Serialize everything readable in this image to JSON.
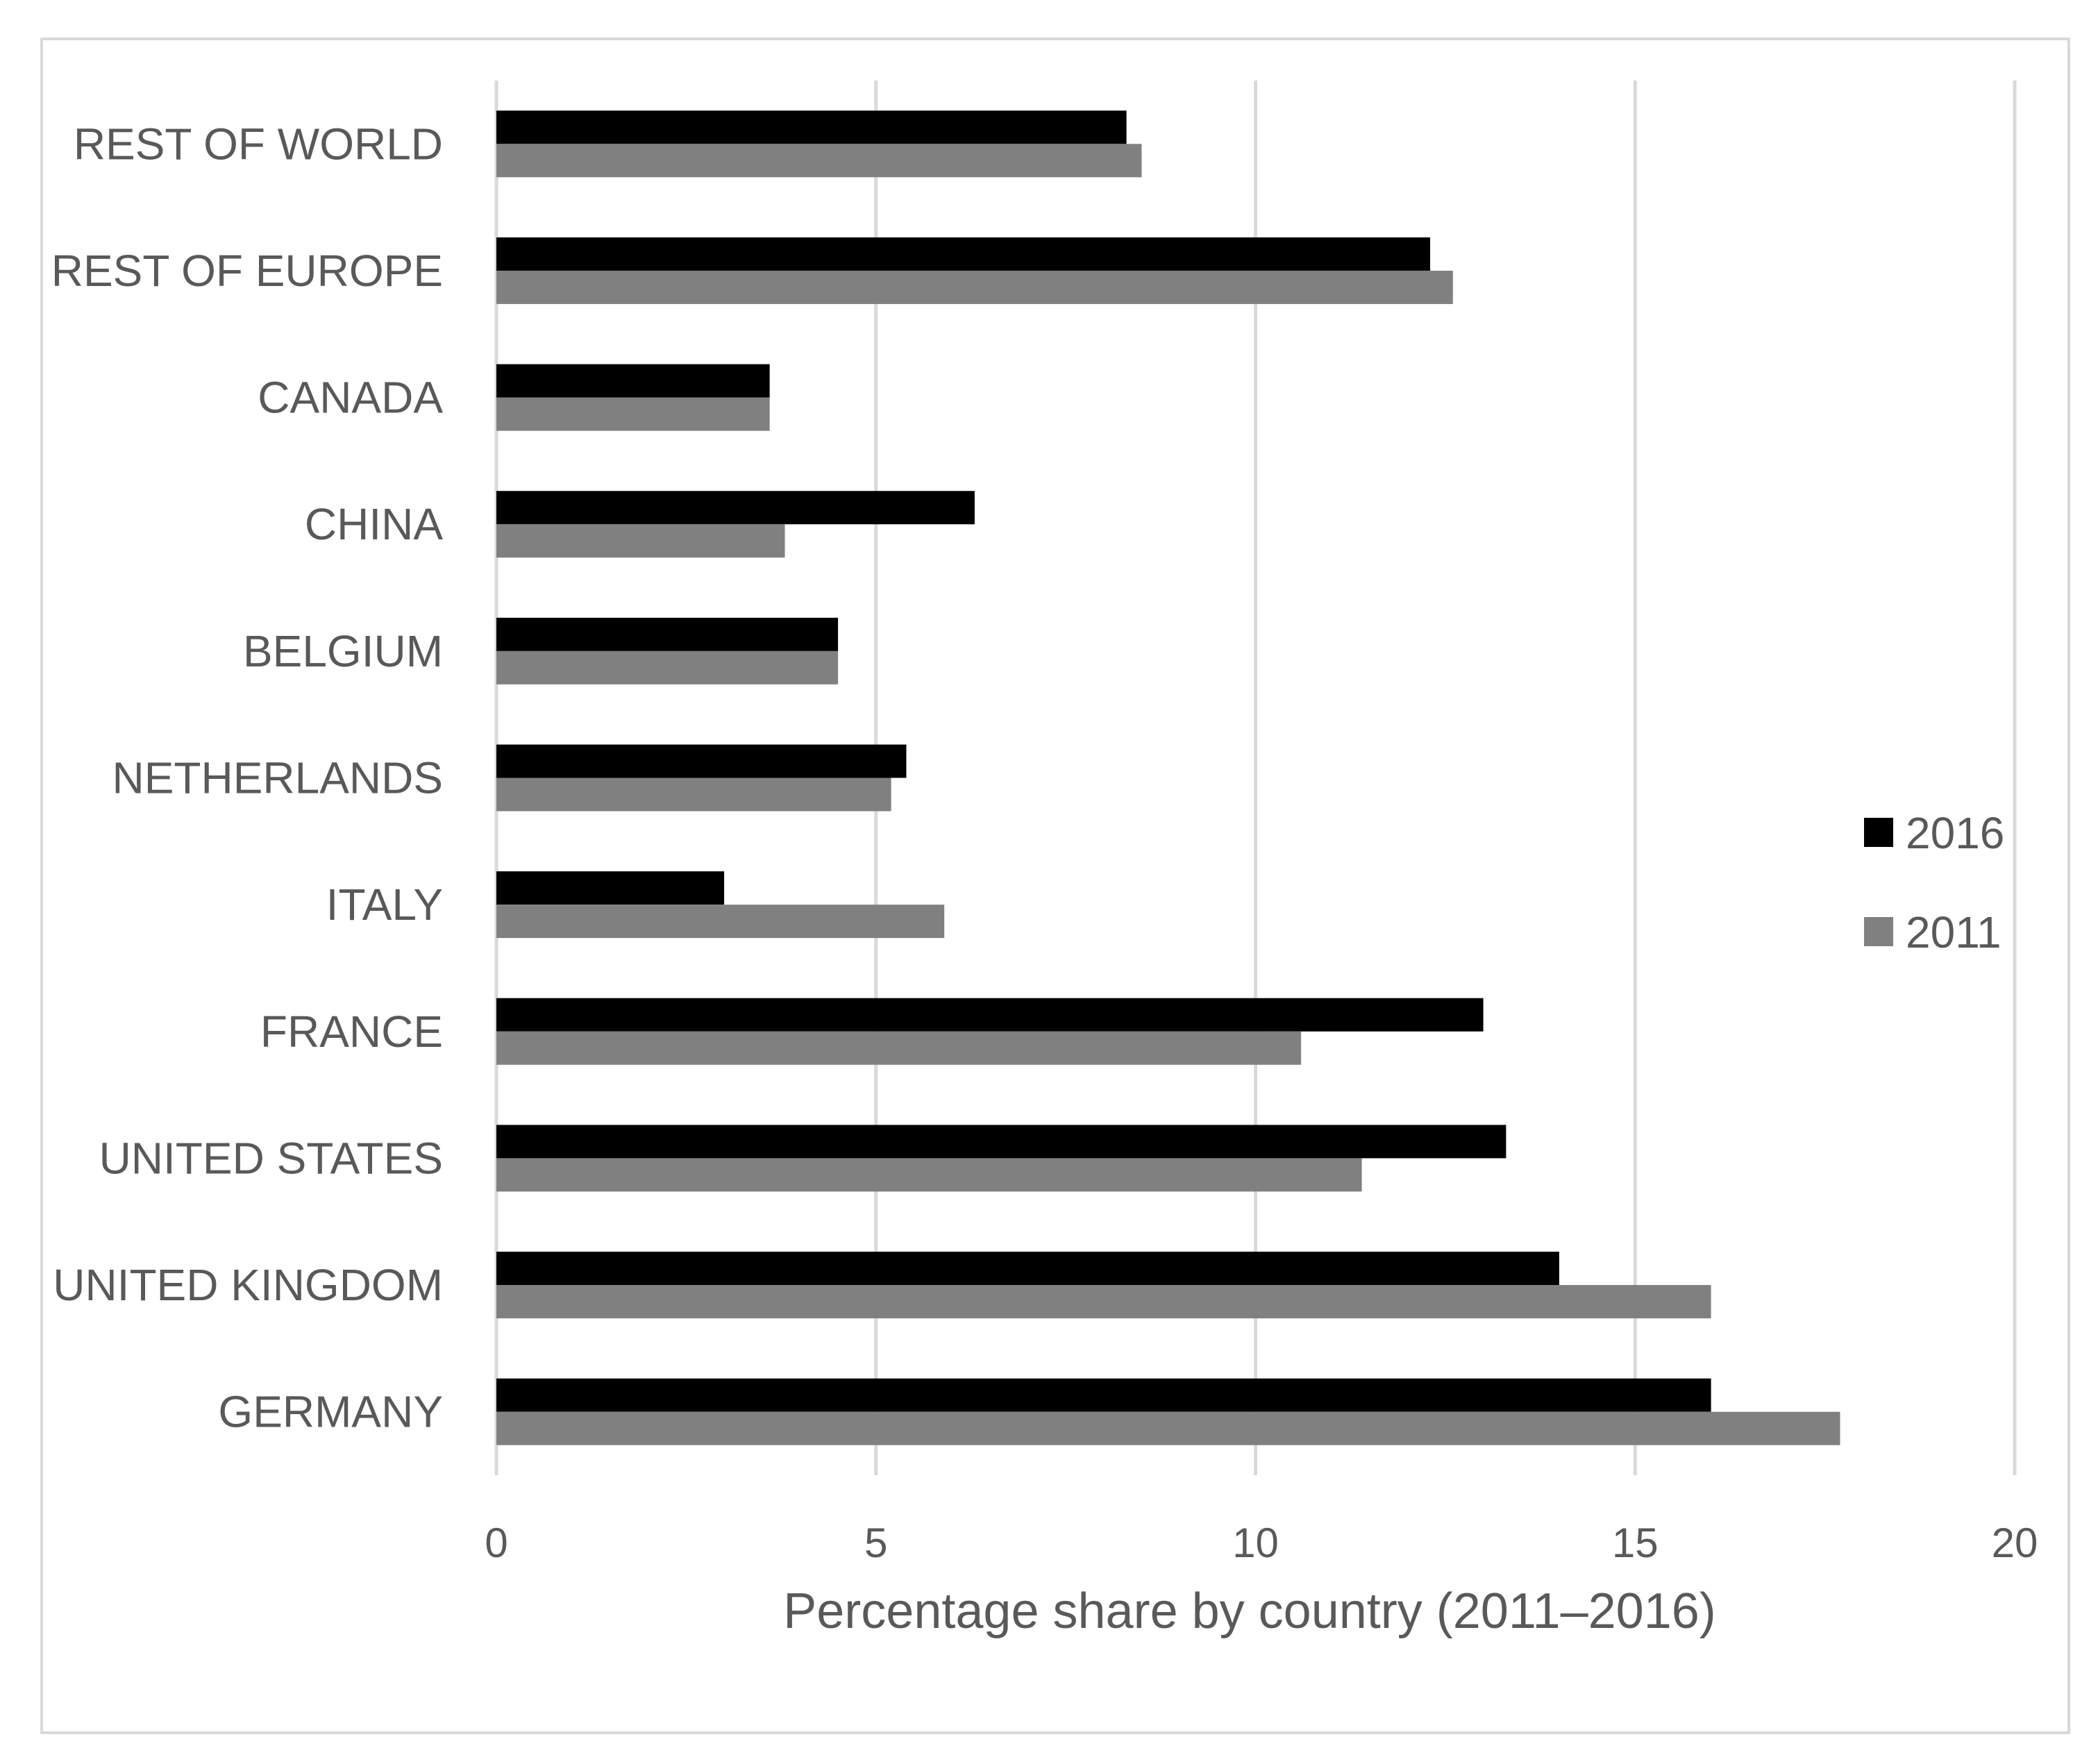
{
  "chart_data": {
    "type": "bar",
    "orientation": "horizontal",
    "title": "",
    "xlabel": "Percentage share by country (2011–2016)",
    "ylabel": "",
    "xlim": [
      0,
      20
    ],
    "x_ticks": [
      0,
      5,
      10,
      15,
      20
    ],
    "grid": "vertical",
    "legend_position": "right",
    "categories": [
      "GERMANY",
      "UNITED KINGDOM",
      "UNITED STATES",
      "FRANCE",
      "ITALY",
      "NETHERLANDS",
      "BELGIUM",
      "CHINA",
      "CANADA",
      "REST OF EUROPE",
      "REST OF WORLD"
    ],
    "series": [
      {
        "name": "2016",
        "color": "#000000",
        "values": [
          16.0,
          14.0,
          13.3,
          13.0,
          3.0,
          5.4,
          4.5,
          6.3,
          3.6,
          12.3,
          8.3
        ]
      },
      {
        "name": "2011",
        "color": "#808080",
        "values": [
          17.7,
          16.0,
          11.4,
          10.6,
          5.9,
          5.2,
          4.5,
          3.8,
          3.6,
          12.6,
          8.5
        ]
      }
    ]
  }
}
